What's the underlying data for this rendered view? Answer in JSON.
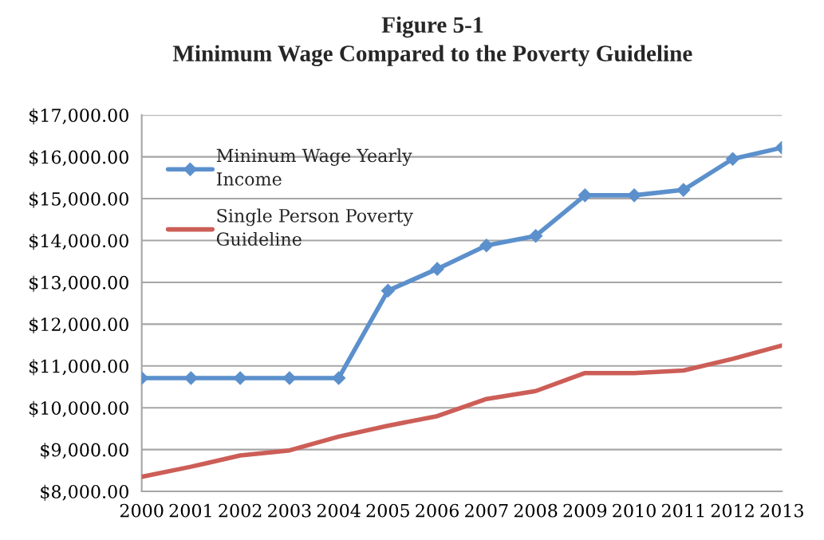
{
  "chart_data": {
    "type": "line",
    "title": "Figure 5-1",
    "subtitle": "Minimum Wage Compared to the Poverty Guideline",
    "categories": [
      "2000",
      "2001",
      "2002",
      "2003",
      "2004",
      "2005",
      "2006",
      "2007",
      "2008",
      "2009",
      "2010",
      "2011",
      "2012",
      "2013"
    ],
    "series": [
      {
        "name": "Mininum Wage Yearly Income",
        "color": "#5b90cc",
        "marker": "diamond",
        "values": [
          10710,
          10710,
          10710,
          10710,
          10710,
          12800,
          13320,
          13880,
          14110,
          15080,
          15080,
          15210,
          15950,
          16220
        ]
      },
      {
        "name": "Single Person Poverty Guideline",
        "color": "#cc5e57",
        "marker": "none",
        "values": [
          8350,
          8590,
          8860,
          8980,
          9310,
          9570,
          9800,
          10210,
          10400,
          10830,
          10830,
          10890,
          11170,
          11490
        ]
      }
    ],
    "ylim": [
      8000,
      17000
    ],
    "yticks": [
      {
        "value": 8000,
        "label": "$8,000.00"
      },
      {
        "value": 9000,
        "label": "$9,000.00"
      },
      {
        "value": 10000,
        "label": "$10,000.00"
      },
      {
        "value": 11000,
        "label": "$11,000.00"
      },
      {
        "value": 12000,
        "label": "$12,000.00"
      },
      {
        "value": 13000,
        "label": "$13,000.00"
      },
      {
        "value": 14000,
        "label": "$14,000.00"
      },
      {
        "value": 15000,
        "label": "$15,000.00"
      },
      {
        "value": 16000,
        "label": "$16,000.00"
      },
      {
        "value": 17000,
        "label": "$17,000.00"
      }
    ],
    "grid": "y",
    "legend": "top left",
    "line_style": "solid"
  }
}
